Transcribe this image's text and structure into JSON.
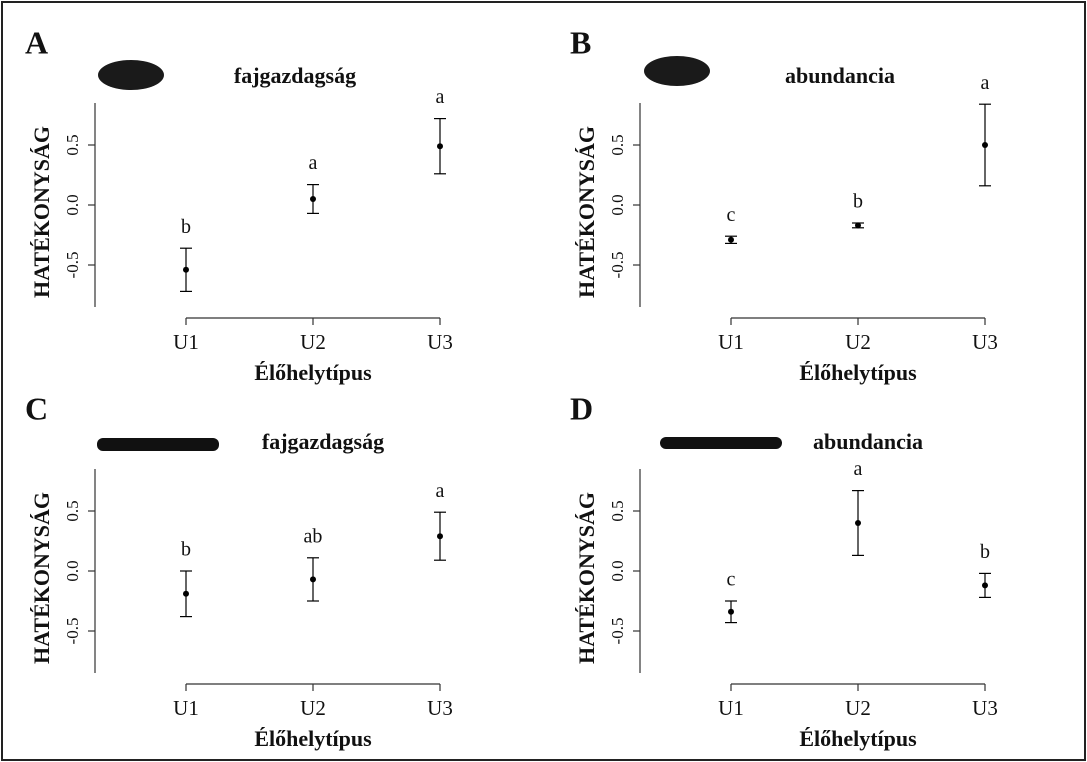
{
  "chart_data": [
    {
      "type": "errorbar",
      "panel": "A",
      "title": "fajgazdagság",
      "ylabel": "HATÉKONYSÁG",
      "xlabel": "Élőhelytípus",
      "categories": [
        "U1",
        "U2",
        "U3"
      ],
      "values": [
        -0.54,
        0.05,
        0.49
      ],
      "errors": [
        0.18,
        0.12,
        0.23
      ],
      "letters": [
        "b",
        "a",
        "a"
      ],
      "ylim": [
        -0.85,
        0.85
      ],
      "yticks": [
        -0.5,
        {
          "value": 0,
          "label": "0.0"
        },
        0.5
      ],
      "color": "#000000"
    },
    {
      "type": "errorbar",
      "panel": "B",
      "title": "abundancia",
      "ylabel": "HATÉKONYSÁG",
      "xlabel": "Élőhelytípus",
      "categories": [
        "U1",
        "U2",
        "U3"
      ],
      "values": [
        -0.29,
        -0.17,
        0.5
      ],
      "errors": [
        0.03,
        0.02,
        0.34
      ],
      "letters": [
        "c",
        "b",
        "a"
      ],
      "ylim": [
        -0.85,
        0.85
      ],
      "yticks": [
        -0.5,
        {
          "value": 0,
          "label": "0.0"
        },
        0.5
      ],
      "color": "#000000"
    },
    {
      "type": "errorbar",
      "panel": "C",
      "title": "fajgazdagság",
      "ylabel": "HATÉKONYSÁG",
      "xlabel": "Élőhelytípus",
      "categories": [
        "U1",
        "U2",
        "U3"
      ],
      "values": [
        -0.19,
        -0.07,
        0.29
      ],
      "errors": [
        0.19,
        0.18,
        0.2
      ],
      "letters": [
        "b",
        "ab",
        "a"
      ],
      "ylim": [
        -0.85,
        0.85
      ],
      "yticks": [
        -0.5,
        {
          "value": 0,
          "label": "0.0"
        },
        0.5
      ],
      "color": "#000000"
    },
    {
      "type": "errorbar",
      "panel": "D",
      "title": "abundancia",
      "ylabel": "HATÉKONYSÁG",
      "xlabel": "Élőhelytípus",
      "categories": [
        "U1",
        "U2",
        "U3"
      ],
      "values": [
        -0.34,
        0.4,
        -0.12
      ],
      "errors": [
        0.09,
        0.27,
        0.1
      ],
      "letters": [
        "c",
        "a",
        "b"
      ],
      "ylim": [
        -0.85,
        0.85
      ],
      "yticks": [
        -0.5,
        {
          "value": 0,
          "label": "0.0"
        },
        0.5
      ],
      "color": "#000000"
    }
  ]
}
